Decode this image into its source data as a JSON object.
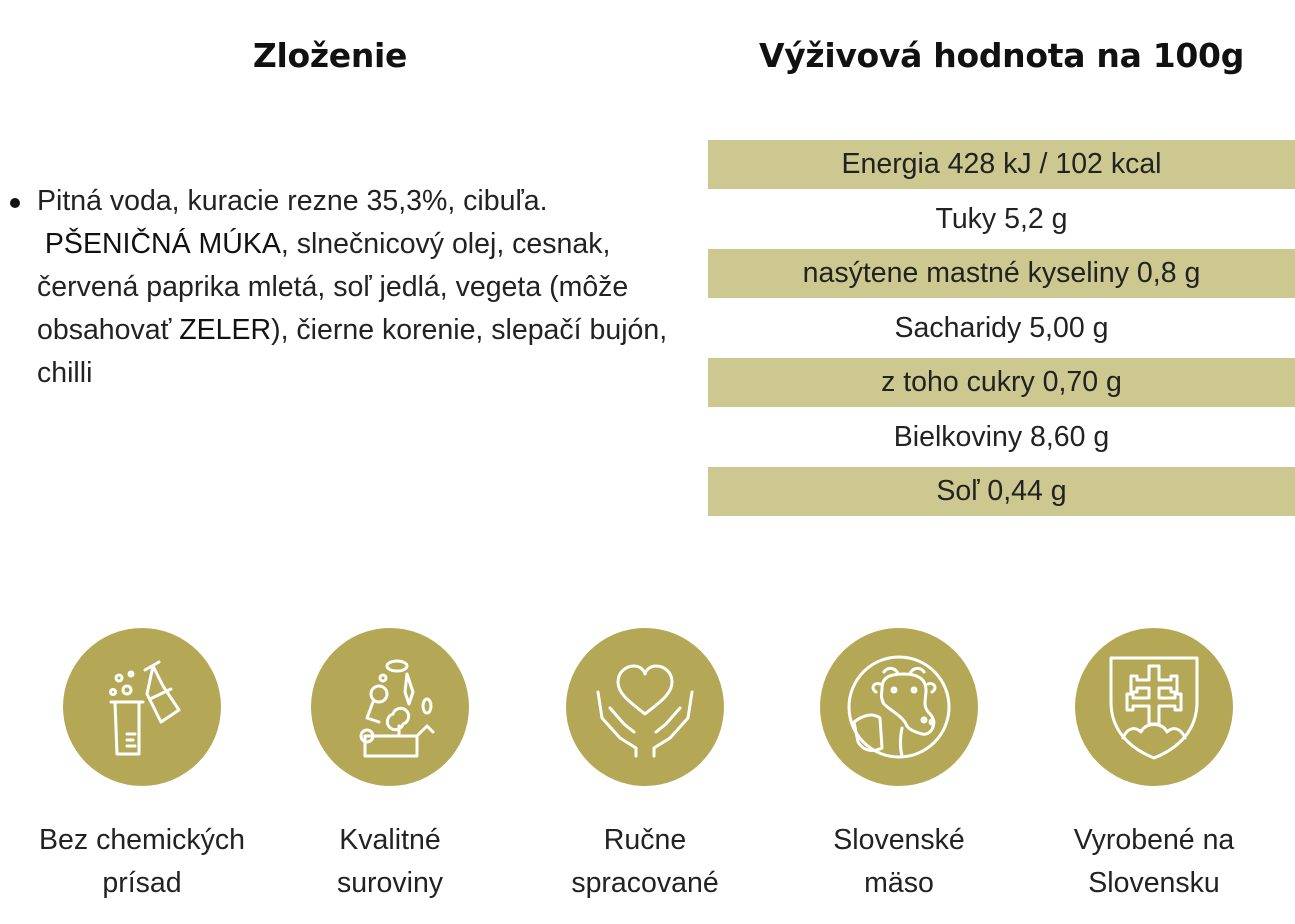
{
  "headings": {
    "ingredients": "Zloženie",
    "nutrition": "Výživová hodnota na 100g"
  },
  "ingredients": {
    "part1": "Pitná voda, kuracie rezne 35,3%, cibuľa.",
    "allergen1": "PŠENIČNÁ MÚKA",
    "part2": ", slnečnicový olej, cesnak, červená paprika mletá, soľ jedlá, vegeta (môže obsahovať ",
    "allergen2": "ZELER",
    "part3": "), čierne korenie, slepačí bujón, chilli"
  },
  "nutrition_rows": [
    "Energia 428 kJ / 102 kcal",
    "Tuky 5,2 g",
    "nasýtene mastné kyseliny 0,8 g",
    "Sacharidy 5,00 g",
    "z toho cukry 0,70 g",
    "Bielkoviny 8,60 g",
    "Soľ 0,44 g"
  ],
  "features": [
    {
      "icon": "lab-flask-icon",
      "line1": "Bez chemických",
      "line2": "prísad"
    },
    {
      "icon": "vegetables-basket-icon",
      "line1": "Kvalitné",
      "line2": "suroviny"
    },
    {
      "icon": "hands-heart-icon",
      "line1": "Ručne",
      "line2": "spracované"
    },
    {
      "icon": "cow-icon",
      "line1": "Slovenské",
      "line2": "mäso"
    },
    {
      "icon": "slovak-coat-of-arms-icon",
      "line1": "Vyrobené na",
      "line2": "Slovensku"
    }
  ],
  "colors": {
    "table_band": "#ccc890",
    "icon_circle": "#b4a856",
    "icon_line": "#ffffff"
  }
}
